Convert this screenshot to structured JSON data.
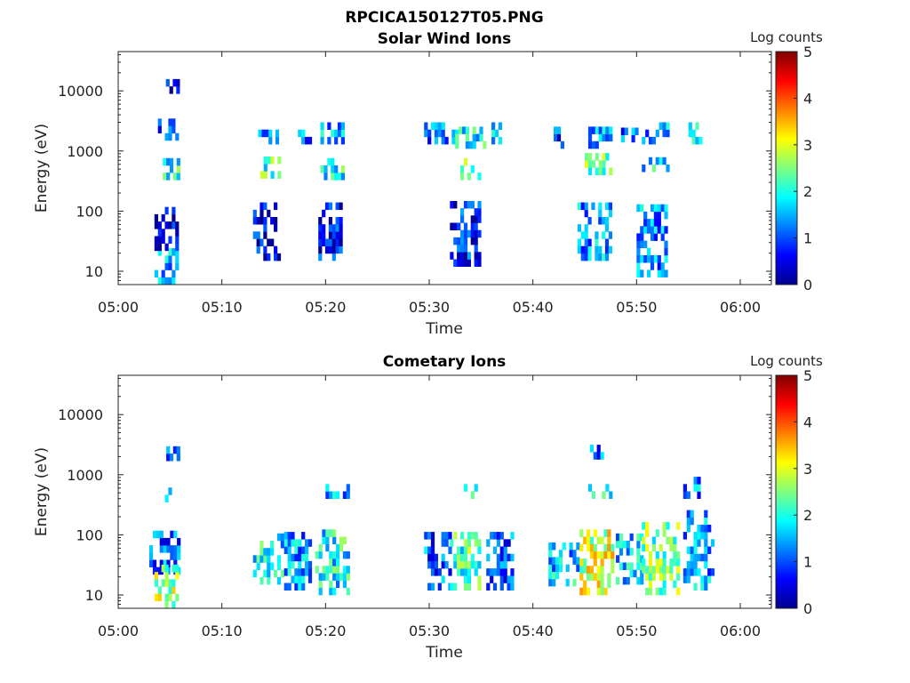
{
  "figure": {
    "title": "RPCICA150127T05.PNG"
  },
  "chart_data": [
    {
      "type": "heatmap",
      "title": "Solar Wind Ions",
      "xlabel": "Time",
      "ylabel": "Energy (eV)",
      "x_range": [
        "05:00",
        "06:03"
      ],
      "x_ticks": [
        "05:00",
        "05:10",
        "05:20",
        "05:30",
        "05:40",
        "05:50",
        "06:00"
      ],
      "y_scale": "log",
      "y_range": [
        6,
        45000
      ],
      "y_ticks": [
        10,
        100,
        1000,
        10000
      ],
      "y_tick_labels": [
        "10",
        "100",
        "1000",
        "10000"
      ],
      "colorbar": {
        "label": "Log counts",
        "range": [
          0,
          5
        ],
        "ticks": [
          "0",
          "1",
          "2",
          "3",
          "4",
          "5"
        ],
        "colormap": "jet"
      },
      "clusters": [
        {
          "t": [
            3.5,
            5.5
          ],
          "e": [
            6,
            22
          ],
          "c": 1.4
        },
        {
          "t": [
            3.5,
            5.5
          ],
          "e": [
            22,
            110
          ],
          "c": 0.4
        },
        {
          "t": [
            3.5,
            5.5
          ],
          "e": [
            1500,
            2800
          ],
          "c": 1.2
        },
        {
          "t": [
            4.3,
            5.7
          ],
          "e": [
            330,
            620
          ],
          "c": 2.0
        },
        {
          "t": [
            4.6,
            5.6
          ],
          "e": [
            9000,
            14000
          ],
          "c": 0.3
        },
        {
          "t": [
            13.5,
            15.5
          ],
          "e": [
            1300,
            2200
          ],
          "c": 1.4
        },
        {
          "t": [
            13.7,
            15.5
          ],
          "e": [
            350,
            620
          ],
          "c": 2.2
        },
        {
          "t": [
            13.0,
            15.5
          ],
          "e": [
            15,
            110
          ],
          "c": 0.6
        },
        {
          "t": [
            17.0,
            18.5
          ],
          "e": [
            1300,
            2200
          ],
          "c": 1.2
        },
        {
          "t": [
            19.5,
            21.6
          ],
          "e": [
            1300,
            2300
          ],
          "c": 1.5
        },
        {
          "t": [
            19.5,
            21.6
          ],
          "e": [
            330,
            620
          ],
          "c": 2.0
        },
        {
          "t": [
            19.3,
            21.5
          ],
          "e": [
            15,
            110
          ],
          "c": 0.6
        },
        {
          "t": [
            29.5,
            32.5
          ],
          "e": [
            1300,
            2300
          ],
          "c": 1.2
        },
        {
          "t": [
            32.5,
            35.5
          ],
          "e": [
            1100,
            2300
          ],
          "c": 1.8
        },
        {
          "t": [
            33.0,
            35.0
          ],
          "e": [
            330,
            650
          ],
          "c": 2.2
        },
        {
          "t": [
            32.0,
            35.0
          ],
          "e": [
            12,
            120
          ],
          "c": 0.7
        },
        {
          "t": [
            36.0,
            37.0
          ],
          "e": [
            1300,
            2300
          ],
          "c": 1.5
        },
        {
          "t": [
            42.0,
            43.0
          ],
          "e": [
            1100,
            2300
          ],
          "c": 1.0
        },
        {
          "t": [
            45.0,
            47.5
          ],
          "e": [
            1100,
            2300
          ],
          "c": 1.6
        },
        {
          "t": [
            45.0,
            47.5
          ],
          "e": [
            400,
            700
          ],
          "c": 2.3
        },
        {
          "t": [
            44.3,
            47.5
          ],
          "e": [
            15,
            110
          ],
          "c": 1.4
        },
        {
          "t": [
            48.5,
            50.0
          ],
          "e": [
            1400,
            2200
          ],
          "c": 1.2
        },
        {
          "t": [
            50.5,
            53.0
          ],
          "e": [
            1300,
            2300
          ],
          "c": 1.4
        },
        {
          "t": [
            50.5,
            53.0
          ],
          "e": [
            450,
            750
          ],
          "c": 1.8
        },
        {
          "t": [
            50.0,
            53.0
          ],
          "e": [
            8,
            110
          ],
          "c": 1.3
        },
        {
          "t": [
            55.0,
            56.2
          ],
          "e": [
            1300,
            2300
          ],
          "c": 1.6
        }
      ]
    },
    {
      "type": "heatmap",
      "title": "Cometary Ions",
      "xlabel": "Time",
      "ylabel": "Energy (eV)",
      "x_range": [
        "05:00",
        "06:03"
      ],
      "x_ticks": [
        "05:00",
        "05:10",
        "05:20",
        "05:30",
        "05:40",
        "05:50",
        "06:00"
      ],
      "y_scale": "log",
      "y_range": [
        6,
        45000
      ],
      "y_ticks": [
        10,
        100,
        1000,
        10000
      ],
      "y_tick_labels": [
        "10",
        "100",
        "1000",
        "10000"
      ],
      "colorbar": {
        "label": "Log counts",
        "range": [
          0,
          5
        ],
        "ticks": [
          "0",
          "1",
          "2",
          "3",
          "4",
          "5"
        ],
        "colormap": "jet"
      },
      "clusters": [
        {
          "t": [
            3.0,
            5.8
          ],
          "e": [
            22,
            110
          ],
          "c": 1.2
        },
        {
          "t": [
            3.5,
            5.5
          ],
          "e": [
            6,
            28
          ],
          "c": 2.6
        },
        {
          "t": [
            4.3,
            5.7
          ],
          "e": [
            1700,
            2700
          ],
          "c": 0.8
        },
        {
          "t": [
            4.5,
            5.7
          ],
          "e": [
            350,
            600
          ],
          "c": 1.5
        },
        {
          "t": [
            13.0,
            15.8
          ],
          "e": [
            15,
            100
          ],
          "c": 1.8
        },
        {
          "t": [
            16.0,
            18.5
          ],
          "e": [
            12,
            90
          ],
          "c": 1.4
        },
        {
          "t": [
            19.0,
            22.0
          ],
          "e": [
            10,
            110
          ],
          "c": 1.9
        },
        {
          "t": [
            20.0,
            22.0
          ],
          "e": [
            400,
            650
          ],
          "c": 1.5
        },
        {
          "t": [
            29.5,
            32.0
          ],
          "e": [
            12,
            100
          ],
          "c": 1.1
        },
        {
          "t": [
            32.0,
            35.0
          ],
          "e": [
            12,
            110
          ],
          "c": 2.2
        },
        {
          "t": [
            35.5,
            38.0
          ],
          "e": [
            12,
            90
          ],
          "c": 1.0
        },
        {
          "t": [
            33.0,
            34.5
          ],
          "e": [
            400,
            650
          ],
          "c": 1.6
        },
        {
          "t": [
            41.5,
            44.5
          ],
          "e": [
            14,
            70
          ],
          "c": 1.6
        },
        {
          "t": [
            44.5,
            47.8
          ],
          "e": [
            10,
            110
          ],
          "c": 2.9
        },
        {
          "t": [
            45.0,
            47.5
          ],
          "e": [
            400,
            650
          ],
          "c": 1.7
        },
        {
          "t": [
            48.0,
            50.5
          ],
          "e": [
            15,
            90
          ],
          "c": 1.6
        },
        {
          "t": [
            50.5,
            54.0
          ],
          "e": [
            10,
            150
          ],
          "c": 2.4
        },
        {
          "t": [
            54.5,
            57.5
          ],
          "e": [
            12,
            200
          ],
          "c": 1.4
        },
        {
          "t": [
            54.5,
            56.5
          ],
          "e": [
            400,
            700
          ],
          "c": 1.3
        },
        {
          "t": [
            45.5,
            47.0
          ],
          "e": [
            1800,
            2700
          ],
          "c": 1.0
        }
      ]
    }
  ]
}
